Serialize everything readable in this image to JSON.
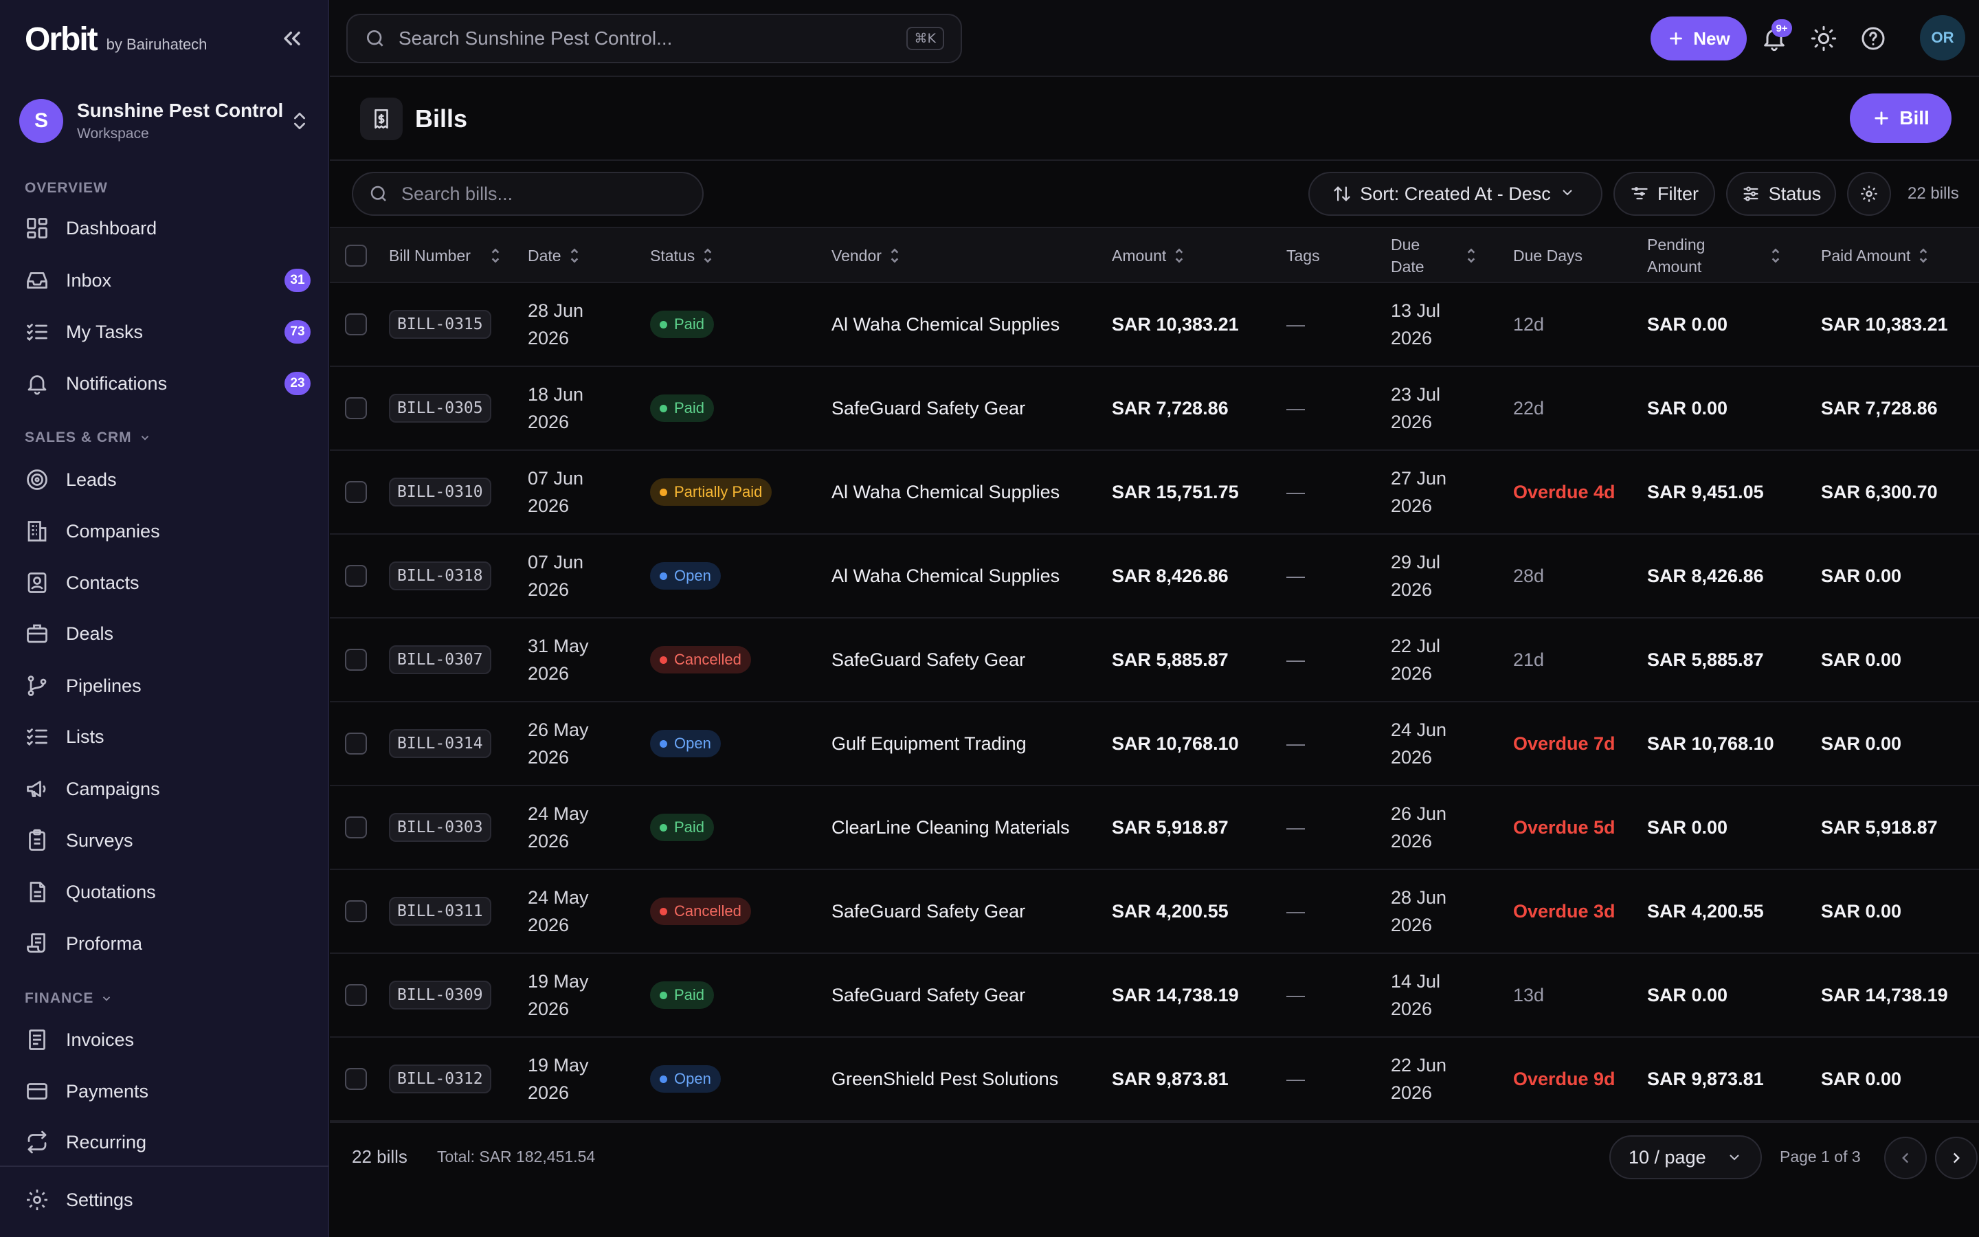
{
  "brand": {
    "name": "Orbit",
    "by": "by Bairuhatech"
  },
  "workspace": {
    "initial": "S",
    "name": "Sunshine Pest Control",
    "type": "Workspace"
  },
  "sidebar": {
    "overview_label": "OVERVIEW",
    "overview": [
      {
        "label": "Dashboard",
        "icon": "dashboard-icon"
      },
      {
        "label": "Inbox",
        "icon": "inbox-icon",
        "badge": "31"
      },
      {
        "label": "My Tasks",
        "icon": "tasks-icon",
        "badge": "73"
      },
      {
        "label": "Notifications",
        "icon": "bell-icon",
        "badge": "23"
      }
    ],
    "sales_label": "SALES & CRM",
    "sales": [
      {
        "label": "Leads",
        "icon": "target-icon"
      },
      {
        "label": "Companies",
        "icon": "building-icon"
      },
      {
        "label": "Contacts",
        "icon": "contact-icon"
      },
      {
        "label": "Deals",
        "icon": "briefcase-icon"
      },
      {
        "label": "Pipelines",
        "icon": "pipeline-icon"
      },
      {
        "label": "Lists",
        "icon": "list-icon"
      },
      {
        "label": "Campaigns",
        "icon": "megaphone-icon"
      },
      {
        "label": "Surveys",
        "icon": "clipboard-icon"
      },
      {
        "label": "Quotations",
        "icon": "document-icon"
      },
      {
        "label": "Proforma",
        "icon": "scroll-icon"
      }
    ],
    "finance_label": "FINANCE",
    "finance": [
      {
        "label": "Invoices",
        "icon": "invoice-icon"
      },
      {
        "label": "Payments",
        "icon": "card-icon"
      },
      {
        "label": "Recurring",
        "icon": "repeat-icon"
      }
    ],
    "settings_label": "Settings"
  },
  "topbar": {
    "search_placeholder": "Search Sunshine Pest Control...",
    "shortcut": "⌘K",
    "new_label": "New",
    "notif_badge": "9+",
    "user_initials": "OR"
  },
  "page": {
    "title": "Bills",
    "add_label": "Bill"
  },
  "toolbar": {
    "search_placeholder": "Search bills...",
    "sort_label": "Sort: Created At - Desc",
    "filter_label": "Filter",
    "status_label": "Status",
    "count_label": "22 bills"
  },
  "columns": {
    "bill_number": "Bill Number",
    "date": "Date",
    "status": "Status",
    "vendor": "Vendor",
    "amount": "Amount",
    "tags": "Tags",
    "due_date": "Due Date",
    "due_days": "Due Days",
    "pending": "Pending Amount",
    "paid": "Paid Amount"
  },
  "rows": [
    {
      "bill": "BILL-0315",
      "date_a": "28 Jun",
      "date_b": "2026",
      "status": "Paid",
      "status_kind": "paid",
      "vendor": "Al Waha Chemical Supplies",
      "amount": "SAR 10,383.21",
      "tags": "—",
      "due_a": "13 Jul",
      "due_b": "2026",
      "due_days": "12d",
      "overdue": false,
      "pending": "SAR 0.00",
      "paid": "SAR 10,383.21"
    },
    {
      "bill": "BILL-0305",
      "date_a": "18 Jun",
      "date_b": "2026",
      "status": "Paid",
      "status_kind": "paid",
      "vendor": "SafeGuard Safety Gear",
      "amount": "SAR 7,728.86",
      "tags": "—",
      "due_a": "23 Jul",
      "due_b": "2026",
      "due_days": "22d",
      "overdue": false,
      "pending": "SAR 0.00",
      "paid": "SAR 7,728.86"
    },
    {
      "bill": "BILL-0310",
      "date_a": "07 Jun",
      "date_b": "2026",
      "status": "Partially Paid",
      "status_kind": "partial",
      "vendor": "Al Waha Chemical Supplies",
      "amount": "SAR 15,751.75",
      "tags": "—",
      "due_a": "27 Jun",
      "due_b": "2026",
      "due_days": "Overdue 4d",
      "overdue": true,
      "pending": "SAR 9,451.05",
      "paid": "SAR 6,300.70"
    },
    {
      "bill": "BILL-0318",
      "date_a": "07 Jun",
      "date_b": "2026",
      "status": "Open",
      "status_kind": "open",
      "vendor": "Al Waha Chemical Supplies",
      "amount": "SAR 8,426.86",
      "tags": "—",
      "due_a": "29 Jul",
      "due_b": "2026",
      "due_days": "28d",
      "overdue": false,
      "pending": "SAR 8,426.86",
      "paid": "SAR 0.00"
    },
    {
      "bill": "BILL-0307",
      "date_a": "31 May",
      "date_b": "2026",
      "status": "Cancelled",
      "status_kind": "cancel",
      "vendor": "SafeGuard Safety Gear",
      "amount": "SAR 5,885.87",
      "tags": "—",
      "due_a": "22 Jul",
      "due_b": "2026",
      "due_days": "21d",
      "overdue": false,
      "pending": "SAR 5,885.87",
      "paid": "SAR 0.00"
    },
    {
      "bill": "BILL-0314",
      "date_a": "26 May",
      "date_b": "2026",
      "status": "Open",
      "status_kind": "open",
      "vendor": "Gulf Equipment Trading",
      "amount": "SAR 10,768.10",
      "tags": "—",
      "due_a": "24 Jun",
      "due_b": "2026",
      "due_days": "Overdue 7d",
      "overdue": true,
      "pending": "SAR 10,768.10",
      "paid": "SAR 0.00"
    },
    {
      "bill": "BILL-0303",
      "date_a": "24 May",
      "date_b": "2026",
      "status": "Paid",
      "status_kind": "paid",
      "vendor": "ClearLine Cleaning Materials",
      "amount": "SAR 5,918.87",
      "tags": "—",
      "due_a": "26 Jun",
      "due_b": "2026",
      "due_days": "Overdue 5d",
      "overdue": true,
      "pending": "SAR 0.00",
      "paid": "SAR 5,918.87"
    },
    {
      "bill": "BILL-0311",
      "date_a": "24 May",
      "date_b": "2026",
      "status": "Cancelled",
      "status_kind": "cancel",
      "vendor": "SafeGuard Safety Gear",
      "amount": "SAR 4,200.55",
      "tags": "—",
      "due_a": "28 Jun",
      "due_b": "2026",
      "due_days": "Overdue 3d",
      "overdue": true,
      "pending": "SAR 4,200.55",
      "paid": "SAR 0.00"
    },
    {
      "bill": "BILL-0309",
      "date_a": "19 May",
      "date_b": "2026",
      "status": "Paid",
      "status_kind": "paid",
      "vendor": "SafeGuard Safety Gear",
      "amount": "SAR 14,738.19",
      "tags": "—",
      "due_a": "14 Jul",
      "due_b": "2026",
      "due_days": "13d",
      "overdue": false,
      "pending": "SAR 0.00",
      "paid": "SAR 14,738.19"
    },
    {
      "bill": "BILL-0312",
      "date_a": "19 May",
      "date_b": "2026",
      "status": "Open",
      "status_kind": "open",
      "vendor": "GreenShield Pest Solutions",
      "amount": "SAR 9,873.81",
      "tags": "—",
      "due_a": "22 Jun",
      "due_b": "2026",
      "due_days": "Overdue 9d",
      "overdue": true,
      "pending": "SAR 9,873.81",
      "paid": "SAR 0.00"
    }
  ],
  "footer": {
    "count": "22 bills",
    "total": "Total: SAR 182,451.54",
    "per_page": "10 / page",
    "page_label": "Page 1 of 3"
  },
  "colors": {
    "accent": "#7a5af5",
    "background": "#0a0a0c",
    "sidebar": "#16152a",
    "overdue": "#f1493f"
  }
}
